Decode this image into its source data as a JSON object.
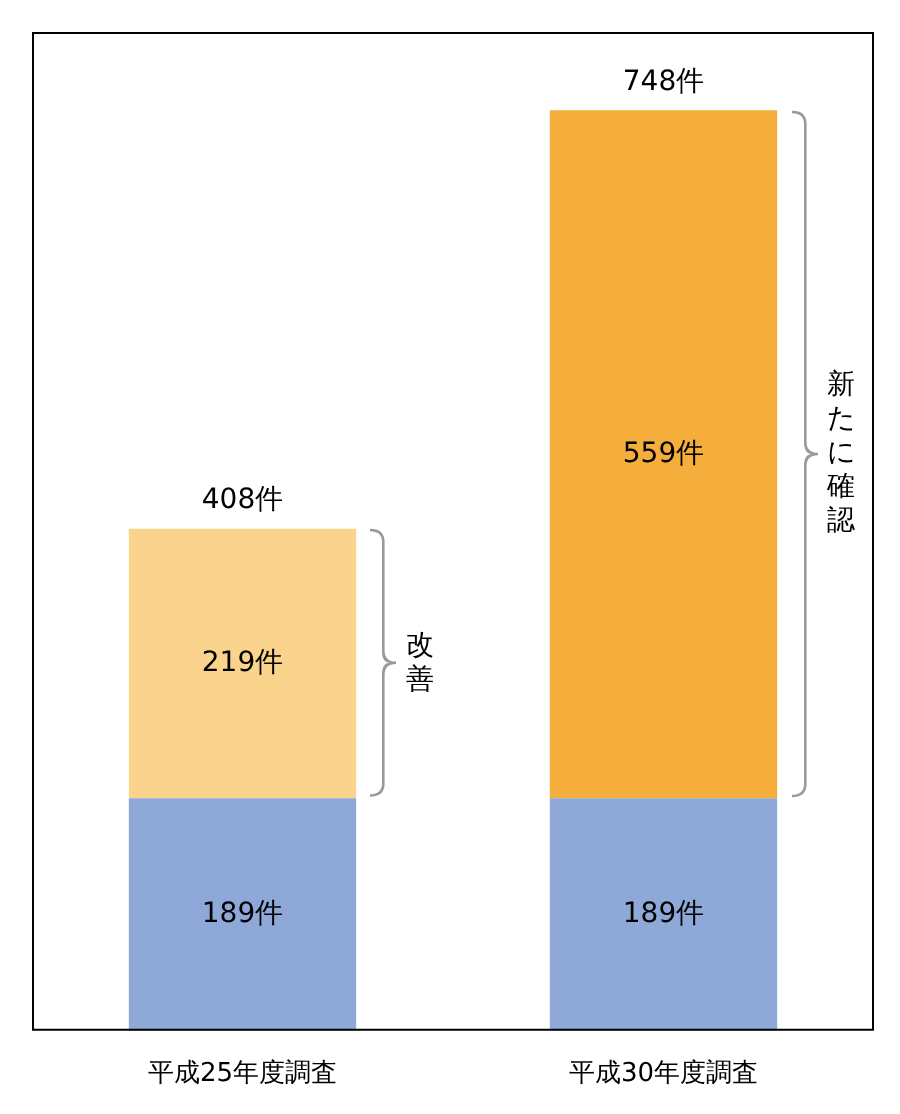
{
  "chart_data": {
    "type": "bar",
    "stacked": true,
    "categories": [
      "平成25年度調査",
      "平成30年度調査"
    ],
    "series": [
      {
        "colors": [
          "#8ea9d8",
          "#8ea9d8"
        ],
        "values": [
          189,
          189
        ],
        "value_labels": [
          "189件",
          "189件"
        ]
      },
      {
        "colors": [
          "#fad48c",
          "#f5ad3c"
        ],
        "values": [
          219,
          559
        ],
        "value_labels": [
          "219件",
          "559件"
        ]
      }
    ],
    "totals": [
      "408件",
      "748件"
    ],
    "annotations": [
      "改善",
      "新たに確認"
    ]
  }
}
